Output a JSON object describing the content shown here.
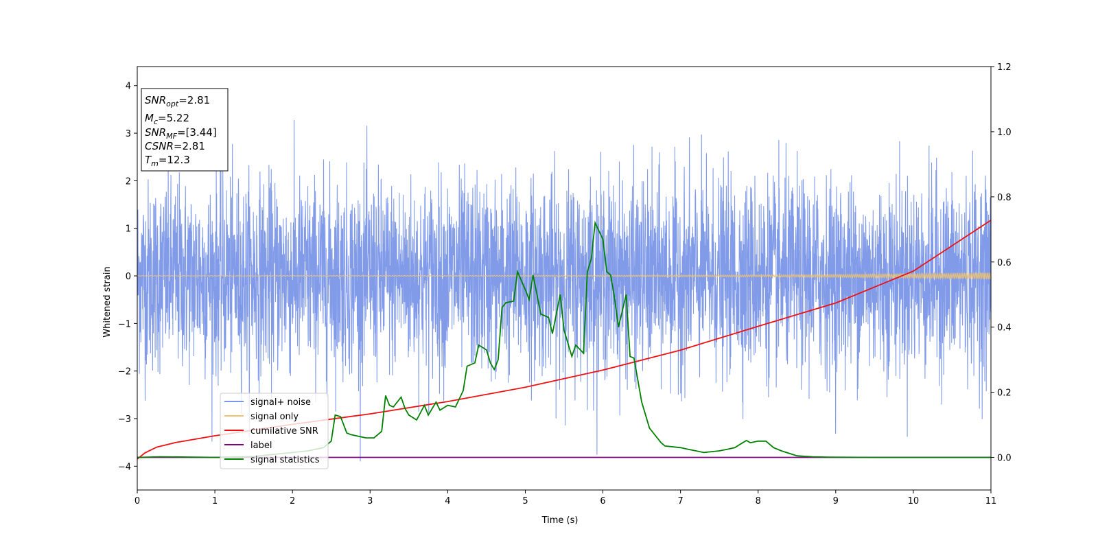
{
  "chart_data": {
    "type": "line",
    "title": "",
    "xlabel": "Time (s)",
    "ylabel": "Whitened strain",
    "xlim": [
      0,
      11
    ],
    "ylim": [
      -4.5,
      4.4
    ],
    "y2lim": [
      -0.1,
      1.2
    ],
    "x_ticks": [
      0,
      1,
      2,
      3,
      4,
      5,
      6,
      7,
      8,
      9,
      10,
      11
    ],
    "x_tick_labels": [
      "0",
      "1",
      "2",
      "3",
      "4",
      "5",
      "6",
      "7",
      "8",
      "9",
      "10",
      "11"
    ],
    "y_ticks": [
      -4,
      -3,
      -2,
      -1,
      0,
      1,
      2,
      3,
      4
    ],
    "y_tick_labels": [
      "−4",
      "−3",
      "−2",
      "−1",
      "0",
      "1",
      "2",
      "3",
      "4"
    ],
    "y2_ticks": [
      0.0,
      0.2,
      0.4,
      0.6,
      0.8,
      1.0,
      1.2
    ],
    "y2_tick_labels": [
      "0.0",
      "0.2",
      "0.4",
      "0.6",
      "0.8",
      "1.0",
      "1.2"
    ],
    "grid": false,
    "legend_position": "lower-left",
    "series": [
      {
        "name": "signal+ noise",
        "color": "#7a96e8",
        "axis": "left",
        "kind": "noise",
        "sigma": 1.0,
        "x_range": [
          0,
          11
        ]
      },
      {
        "name": "signal only",
        "color": "#f0c36e",
        "axis": "left",
        "kind": "chirp",
        "x": [
          0,
          2,
          4,
          6,
          8,
          9,
          10,
          10.5,
          11
        ],
        "amplitude": [
          0.005,
          0.006,
          0.008,
          0.012,
          0.02,
          0.03,
          0.045,
          0.055,
          0.07
        ]
      },
      {
        "name": "cumilative SNR",
        "color": "#ee1111",
        "axis": "left",
        "x": [
          0,
          0.1,
          0.25,
          0.5,
          1,
          1.5,
          2,
          3,
          4,
          5,
          6,
          7,
          8,
          9,
          10,
          11
        ],
        "y": [
          -3.85,
          -3.72,
          -3.6,
          -3.5,
          -3.36,
          -3.24,
          -3.12,
          -2.9,
          -2.64,
          -2.34,
          -1.98,
          -1.56,
          -1.06,
          -0.57,
          0.1,
          1.17
        ]
      },
      {
        "name": "label",
        "color": "#800080",
        "axis": "right",
        "x": [
          0,
          11
        ],
        "y": [
          0.0,
          0.0
        ]
      },
      {
        "name": "signal statistics",
        "color": "#008000",
        "axis": "right",
        "x": [
          0,
          0.3,
          1.0,
          1.5,
          2.0,
          2.2,
          2.4,
          2.5,
          2.55,
          2.62,
          2.7,
          2.75,
          2.85,
          2.95,
          3.05,
          3.15,
          3.2,
          3.25,
          3.3,
          3.4,
          3.45,
          3.5,
          3.6,
          3.7,
          3.75,
          3.85,
          3.9,
          4.0,
          4.1,
          4.2,
          4.25,
          4.35,
          4.4,
          4.5,
          4.55,
          4.6,
          4.65,
          4.7,
          4.75,
          4.85,
          4.9,
          5.0,
          5.05,
          5.1,
          5.2,
          5.3,
          5.35,
          5.45,
          5.5,
          5.6,
          5.65,
          5.75,
          5.8,
          5.85,
          5.9,
          6.0,
          6.05,
          6.1,
          6.15,
          6.2,
          6.3,
          6.35,
          6.4,
          6.5,
          6.6,
          6.75,
          6.8,
          7.0,
          7.1,
          7.2,
          7.3,
          7.5,
          7.6,
          7.7,
          7.8,
          7.85,
          7.9,
          8.0,
          8.1,
          8.2,
          8.3,
          8.5,
          8.7,
          8.9,
          9.5,
          10.0,
          11.0
        ],
        "y": [
          0.0,
          0.002,
          0.0,
          0.003,
          0.015,
          0.02,
          0.03,
          0.05,
          0.13,
          0.125,
          0.075,
          0.07,
          0.065,
          0.06,
          0.06,
          0.08,
          0.19,
          0.16,
          0.155,
          0.185,
          0.15,
          0.13,
          0.115,
          0.16,
          0.13,
          0.17,
          0.145,
          0.16,
          0.155,
          0.205,
          0.28,
          0.29,
          0.345,
          0.33,
          0.29,
          0.27,
          0.3,
          0.46,
          0.475,
          0.48,
          0.57,
          0.515,
          0.485,
          0.56,
          0.44,
          0.43,
          0.38,
          0.5,
          0.39,
          0.31,
          0.345,
          0.32,
          0.57,
          0.61,
          0.72,
          0.67,
          0.57,
          0.56,
          0.49,
          0.4,
          0.5,
          0.31,
          0.305,
          0.17,
          0.09,
          0.045,
          0.035,
          0.03,
          0.025,
          0.02,
          0.015,
          0.02,
          0.025,
          0.03,
          0.045,
          0.052,
          0.045,
          0.05,
          0.05,
          0.03,
          0.02,
          0.005,
          0.002,
          0.001,
          0.0,
          0.0,
          0.0
        ]
      }
    ],
    "annotation_box": [
      {
        "main": "SNR",
        "sub": "opt",
        "rest": "=2.81"
      },
      {
        "main": "M",
        "sub": "c",
        "rest": "=5.22"
      },
      {
        "main": "SNR",
        "sub": "MF",
        "rest": "=[3.44]"
      },
      {
        "main": "CSNR",
        "sub": "",
        "rest": "=2.81"
      },
      {
        "main": "T",
        "sub": "m",
        "rest": "=12.3"
      }
    ]
  }
}
